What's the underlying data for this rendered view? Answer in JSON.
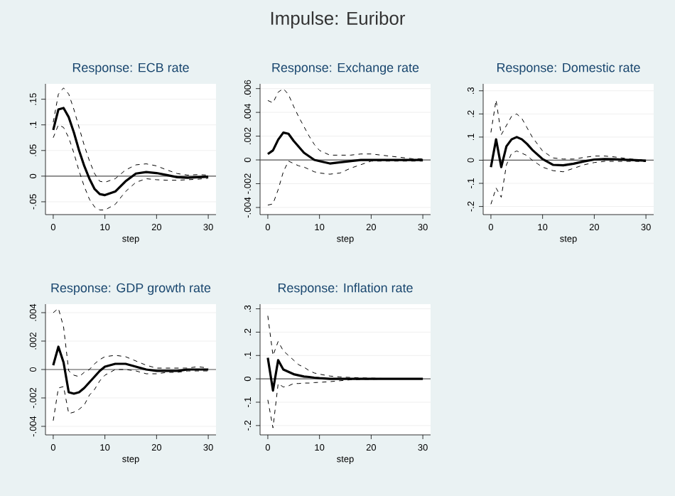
{
  "chart_data": [
    {
      "type": "other",
      "title": "Impulse: Euribor"
    },
    {
      "type": "line",
      "title": "Response: ECB rate",
      "xlabel": "step",
      "x": [
        0,
        1,
        2,
        3,
        4,
        5,
        6,
        7,
        8,
        9,
        10,
        12,
        14,
        16,
        18,
        20,
        22,
        24,
        26,
        28,
        30
      ],
      "xlim": [
        -1.5,
        31.5
      ],
      "xticks": [
        0,
        10,
        20,
        30
      ],
      "ylim": [
        -0.075,
        0.18
      ],
      "yticks": [
        {
          "value": -0.05,
          "label": "-.05"
        },
        {
          "value": 0,
          "label": "0"
        },
        {
          "value": 0.05,
          "label": ".05"
        },
        {
          "value": 0.1,
          "label": ".1"
        },
        {
          "value": 0.15,
          "label": ".15"
        }
      ],
      "grid": "y",
      "ref_lines": [
        {
          "axis": "y",
          "value": 0,
          "color": "#555555"
        }
      ],
      "series": [
        {
          "color": "#000000",
          "line_style": "dashed",
          "values": [
            0.075,
            0.1,
            0.095,
            0.075,
            0.045,
            0.01,
            -0.02,
            -0.045,
            -0.06,
            -0.066,
            -0.066,
            -0.055,
            -0.03,
            -0.012,
            -0.005,
            -0.007,
            -0.008,
            -0.008,
            -0.007,
            -0.006,
            -0.004
          ]
        },
        {
          "color": "#000000",
          "line_style": "solid",
          "values": [
            0.09,
            0.13,
            0.133,
            0.115,
            0.085,
            0.05,
            0.02,
            -0.005,
            -0.025,
            -0.035,
            -0.037,
            -0.03,
            -0.01,
            0.005,
            0.008,
            0.006,
            0.002,
            -0.002,
            -0.003,
            -0.002,
            -0.001
          ]
        },
        {
          "color": "#000000",
          "line_style": "dashed",
          "values": [
            0.105,
            0.16,
            0.172,
            0.16,
            0.13,
            0.095,
            0.06,
            0.03,
            0.005,
            -0.01,
            -0.012,
            -0.005,
            0.012,
            0.022,
            0.024,
            0.02,
            0.012,
            0.005,
            0.002,
            0.003,
            0.002
          ]
        }
      ]
    },
    {
      "type": "line",
      "title": "Response: Exchange rate",
      "xlabel": "step",
      "x": [
        0,
        1,
        2,
        3,
        4,
        5,
        6,
        7,
        8,
        9,
        10,
        12,
        14,
        16,
        18,
        20,
        22,
        24,
        26,
        28,
        30
      ],
      "xlim": [
        -1.5,
        31.5
      ],
      "xticks": [
        0,
        10,
        20,
        30
      ],
      "ylim": [
        -0.0046,
        0.0064
      ],
      "yticks": [
        {
          "value": -0.004,
          "label": "-.004"
        },
        {
          "value": -0.002,
          "label": "-.002"
        },
        {
          "value": 0,
          "label": "0"
        },
        {
          "value": 0.002,
          "label": ".002"
        },
        {
          "value": 0.004,
          "label": ".004"
        },
        {
          "value": 0.006,
          "label": ".006"
        }
      ],
      "grid": "y",
      "ref_lines": [
        {
          "axis": "y",
          "value": 0,
          "color": "#555555"
        }
      ],
      "series": [
        {
          "color": "#000000",
          "line_style": "dashed",
          "values": [
            -0.0038,
            -0.0037,
            -0.0025,
            -0.001,
            -0.0001,
            -0.0003,
            -0.0005,
            -0.0006,
            -0.0008,
            -0.001,
            -0.0011,
            -0.0012,
            -0.0011,
            -0.0007,
            -0.0004,
            -0.0001,
            -0.0001,
            -0.0001,
            -0.0001,
            -0.0001,
            -0.0001
          ]
        },
        {
          "color": "#000000",
          "line_style": "solid",
          "values": [
            0.0005,
            0.0008,
            0.0017,
            0.0023,
            0.0022,
            0.0016,
            0.0011,
            0.0006,
            0.0003,
            0,
            -0.0001,
            -0.0003,
            -0.0002,
            -0.0001,
            0,
            0,
            0,
            0,
            0,
            0,
            0
          ]
        },
        {
          "color": "#000000",
          "line_style": "dashed",
          "values": [
            0.005,
            0.0048,
            0.0057,
            0.006,
            0.0055,
            0.0045,
            0.0036,
            0.0028,
            0.002,
            0.0013,
            0.0008,
            0.0004,
            0.0004,
            0.0004,
            0.0005,
            0.0005,
            0.0004,
            0.0003,
            0.0002,
            0.0001,
            0.0001
          ]
        }
      ]
    },
    {
      "type": "line",
      "title": "Response: Domestic rate",
      "xlabel": "step",
      "x": [
        0,
        1,
        2,
        3,
        4,
        5,
        6,
        7,
        8,
        9,
        10,
        12,
        14,
        16,
        18,
        20,
        22,
        24,
        26,
        28,
        30
      ],
      "xlim": [
        -1.5,
        31.5
      ],
      "xticks": [
        0,
        10,
        20,
        30
      ],
      "ylim": [
        -0.235,
        0.33
      ],
      "yticks": [
        {
          "value": -0.2,
          "label": "-.2"
        },
        {
          "value": -0.1,
          "label": "-.1"
        },
        {
          "value": 0,
          "label": "0"
        },
        {
          "value": 0.1,
          "label": ".1"
        },
        {
          "value": 0.2,
          "label": ".2"
        },
        {
          "value": 0.3,
          "label": ".3"
        }
      ],
      "grid": "y",
      "ref_lines": [
        {
          "axis": "y",
          "value": 0,
          "color": "#555555"
        }
      ],
      "series": [
        {
          "color": "#000000",
          "line_style": "dashed",
          "values": [
            -0.19,
            -0.12,
            -0.16,
            -0.02,
            0.03,
            0.04,
            0.03,
            0.02,
            0,
            -0.015,
            -0.03,
            -0.045,
            -0.05,
            -0.035,
            -0.02,
            -0.01,
            -0.005,
            -0.005,
            -0.005,
            -0.005,
            -0.006
          ]
        },
        {
          "color": "#000000",
          "line_style": "solid",
          "values": [
            -0.03,
            0.09,
            -0.03,
            0.06,
            0.09,
            0.1,
            0.09,
            0.07,
            0.045,
            0.025,
            0.005,
            -0.02,
            -0.022,
            -0.015,
            -0.005,
            0.003,
            0.005,
            0.004,
            0.002,
            0,
            -0.002
          ]
        },
        {
          "color": "#000000",
          "line_style": "dashed",
          "values": [
            0.12,
            0.26,
            0.11,
            0.15,
            0.19,
            0.2,
            0.18,
            0.14,
            0.1,
            0.07,
            0.04,
            0.01,
            0.005,
            0.005,
            0.012,
            0.018,
            0.018,
            0.014,
            0.008,
            0.003,
            0.002
          ]
        }
      ]
    },
    {
      "type": "line",
      "title": "Response: GDP growth rate",
      "xlabel": "step",
      "x": [
        0,
        1,
        2,
        3,
        4,
        5,
        6,
        7,
        8,
        9,
        10,
        12,
        14,
        16,
        18,
        20,
        22,
        24,
        26,
        28,
        30
      ],
      "xlim": [
        -1.5,
        31.5
      ],
      "xticks": [
        0,
        10,
        20,
        30
      ],
      "ylim": [
        -0.0046,
        0.0046
      ],
      "yticks": [
        {
          "value": -0.004,
          "label": "-.004"
        },
        {
          "value": -0.002,
          "label": "-.002"
        },
        {
          "value": 0,
          "label": "0"
        },
        {
          "value": 0.002,
          "label": ".002"
        },
        {
          "value": 0.004,
          "label": ".004"
        }
      ],
      "grid": "y",
      "ref_lines": [
        {
          "axis": "y",
          "value": 0,
          "color": "#555555"
        }
      ],
      "series": [
        {
          "color": "#000000",
          "line_style": "dashed",
          "values": [
            -0.0036,
            -0.0013,
            -0.0012,
            -0.0031,
            -0.003,
            -0.0028,
            -0.0025,
            -0.0018,
            -0.0014,
            -0.0008,
            -0.0004,
            0,
            0,
            -0.0001,
            -0.0003,
            -0.0003,
            -0.0002,
            -0.0002,
            -0.0001,
            -0.0001,
            -0.0001
          ]
        },
        {
          "color": "#000000",
          "line_style": "solid",
          "values": [
            0.0003,
            0.0016,
            0.0005,
            -0.0016,
            -0.0017,
            -0.0016,
            -0.0013,
            -0.0009,
            -0.0005,
            -0.0001,
            0.0002,
            0.0004,
            0.0004,
            0.0002,
            0,
            -0.0001,
            -0.0001,
            -0.0001,
            0,
            0,
            0
          ]
        },
        {
          "color": "#000000",
          "line_style": "dashed",
          "values": [
            0.004,
            0.0043,
            0.003,
            -0.0001,
            -0.0004,
            -0.0005,
            -0.0002,
            0,
            0.0004,
            0.0007,
            0.0009,
            0.001,
            0.0009,
            0.0006,
            0.0003,
            0.0001,
            0.0001,
            0.0001,
            0.0001,
            0.0002,
            0.0001
          ]
        }
      ]
    },
    {
      "type": "line",
      "title": "Response: Inflation rate",
      "xlabel": "step",
      "x": [
        0,
        1,
        2,
        3,
        4,
        5,
        6,
        7,
        8,
        9,
        10,
        12,
        14,
        16,
        18,
        20,
        22,
        24,
        26,
        28,
        30
      ],
      "xlim": [
        -1.5,
        31.5
      ],
      "xticks": [
        0,
        10,
        20,
        30
      ],
      "ylim": [
        -0.24,
        0.32
      ],
      "yticks": [
        {
          "value": -0.2,
          "label": "-.2"
        },
        {
          "value": -0.1,
          "label": "-.1"
        },
        {
          "value": 0,
          "label": "0"
        },
        {
          "value": 0.1,
          "label": ".1"
        },
        {
          "value": 0.2,
          "label": ".2"
        },
        {
          "value": 0.3,
          "label": ".3"
        }
      ],
      "grid": "y",
      "ref_lines": [
        {
          "axis": "y",
          "value": 0,
          "color": "#555555"
        }
      ],
      "series": [
        {
          "color": "#000000",
          "line_style": "dashed",
          "values": [
            -0.09,
            -0.21,
            -0.02,
            -0.035,
            -0.03,
            -0.02,
            -0.02,
            -0.018,
            -0.018,
            -0.016,
            -0.015,
            -0.012,
            -0.008,
            -0.004,
            -0.002,
            -0.002,
            -0.001,
            -0.001,
            -0.001,
            -0.001,
            -0.001
          ]
        },
        {
          "color": "#000000",
          "line_style": "solid",
          "values": [
            0.09,
            -0.05,
            0.08,
            0.04,
            0.03,
            0.02,
            0.015,
            0.01,
            0.008,
            0.005,
            0.003,
            0,
            0,
            0,
            0,
            0,
            0,
            0,
            0,
            0,
            0
          ]
        },
        {
          "color": "#000000",
          "line_style": "dashed",
          "values": [
            0.27,
            0.1,
            0.16,
            0.12,
            0.1,
            0.08,
            0.06,
            0.05,
            0.035,
            0.025,
            0.02,
            0.012,
            0.008,
            0.006,
            0.004,
            0.003,
            0.002,
            0.001,
            0.001,
            0.001,
            0.001
          ]
        }
      ]
    }
  ]
}
